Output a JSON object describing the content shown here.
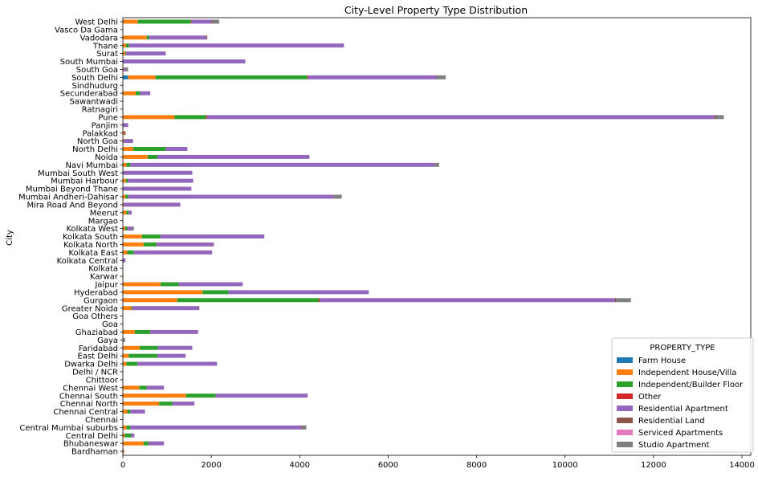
{
  "chart_data": {
    "type": "bar",
    "orientation": "horizontal",
    "stacked": true,
    "title": "City-Level Property Type Distribution",
    "xlabel": "",
    "ylabel": "City",
    "xlim": [
      0,
      14200
    ],
    "xticks": [
      0,
      2000,
      4000,
      6000,
      8000,
      10000,
      12000,
      14000
    ],
    "grid": false,
    "legend_title": "PROPERTY_TYPE",
    "legend_position": "lower-right",
    "categories": [
      "Bardhaman",
      "Bhubaneswar",
      "Central Delhi",
      "Central Mumbai suburbs",
      "Chennai",
      "Chennai Central",
      "Chennai North",
      "Chennai South",
      "Chennai West",
      "Chittoor",
      "Delhi / NCR",
      "Dwarka Delhi",
      "East Delhi",
      "Faridabad",
      "Gaya",
      "Ghaziabad",
      "Goa",
      "Goa Others",
      "Greater Noida",
      "Gurgaon",
      "Hyderabad",
      "Jaipur",
      "Karwar",
      "Kolkata",
      "Kolkata Central",
      "Kolkata East",
      "Kolkata North",
      "Kolkata South",
      "Kolkata West",
      "Margao",
      "Meerut",
      "Mira Road And Beyond",
      "Mumbai Andheri-Dahisar",
      "Mumbai Beyond Thane",
      "Mumbai Harbour",
      "Mumbai South West",
      "Navi Mumbai",
      "Noida",
      "North Delhi",
      "North Goa",
      "Palakkad",
      "Panjim",
      "Pune",
      "Ratnagiri",
      "Sawantwadi",
      "Secunderabad",
      "Sindhudurg",
      "South Delhi",
      "South Goa",
      "South Mumbai",
      "Surat",
      "Thane",
      "Vadodara",
      "Vasco Da Gama",
      "West Delhi"
    ],
    "series": [
      {
        "name": "Farm House",
        "color": "#1f77b4",
        "values": [
          0,
          0,
          0,
          0,
          0,
          0,
          0,
          0,
          0,
          0,
          0,
          0,
          0,
          0,
          0,
          0,
          0,
          0,
          0,
          0,
          0,
          0,
          0,
          0,
          0,
          0,
          0,
          0,
          0,
          0,
          0,
          0,
          0,
          0,
          0,
          0,
          0,
          0,
          0,
          0,
          0,
          0,
          0,
          0,
          0,
          0,
          0,
          120,
          0,
          0,
          0,
          0,
          0,
          0,
          10
        ]
      },
      {
        "name": "Independent House/Villa",
        "color": "#ff7f0e",
        "values": [
          20,
          470,
          40,
          80,
          0,
          100,
          820,
          1430,
          370,
          0,
          0,
          80,
          130,
          380,
          10,
          270,
          0,
          0,
          190,
          1230,
          1800,
          850,
          10,
          0,
          0,
          100,
          470,
          430,
          50,
          0,
          80,
          20,
          60,
          0,
          70,
          0,
          80,
          560,
          230,
          20,
          30,
          10,
          1170,
          0,
          0,
          290,
          0,
          620,
          20,
          0,
          50,
          70,
          540,
          0,
          330
        ]
      },
      {
        "name": "Independent/Builder Floor",
        "color": "#2ca02c",
        "values": [
          0,
          110,
          150,
          90,
          0,
          70,
          300,
          670,
          170,
          0,
          0,
          250,
          650,
          410,
          0,
          350,
          0,
          0,
          20,
          3200,
          590,
          410,
          0,
          0,
          0,
          150,
          290,
          420,
          50,
          0,
          50,
          0,
          60,
          0,
          40,
          0,
          90,
          220,
          740,
          0,
          0,
          0,
          710,
          0,
          0,
          100,
          0,
          3430,
          0,
          0,
          20,
          70,
          50,
          0,
          1200
        ]
      },
      {
        "name": "Other",
        "color": "#d62728",
        "values": [
          0,
          0,
          0,
          0,
          0,
          0,
          0,
          0,
          0,
          0,
          0,
          0,
          0,
          0,
          0,
          0,
          0,
          0,
          0,
          20,
          0,
          0,
          0,
          0,
          0,
          0,
          0,
          0,
          0,
          0,
          0,
          0,
          0,
          0,
          0,
          0,
          0,
          0,
          0,
          0,
          0,
          0,
          20,
          0,
          0,
          0,
          0,
          20,
          0,
          0,
          0,
          0,
          0,
          0,
          10
        ]
      },
      {
        "name": "Residential Apartment",
        "color": "#9467bd",
        "values": [
          0,
          350,
          70,
          3870,
          0,
          330,
          500,
          2080,
          390,
          0,
          0,
          1800,
          640,
          780,
          0,
          1080,
          0,
          0,
          1500,
          6680,
          3170,
          1450,
          0,
          0,
          60,
          1770,
          1300,
          2350,
          100,
          0,
          70,
          1280,
          4650,
          1550,
          1480,
          1570,
          6880,
          3440,
          490,
          210,
          0,
          110,
          11480,
          0,
          0,
          230,
          0,
          2900,
          50,
          2770,
          900,
          4860,
          1300,
          0,
          450
        ]
      },
      {
        "name": "Residential Land",
        "color": "#8c564b",
        "values": [
          0,
          0,
          0,
          20,
          0,
          0,
          0,
          0,
          0,
          0,
          0,
          0,
          0,
          0,
          0,
          0,
          0,
          0,
          20,
          30,
          0,
          0,
          0,
          0,
          0,
          0,
          0,
          0,
          0,
          0,
          0,
          0,
          0,
          0,
          0,
          0,
          0,
          0,
          0,
          0,
          30,
          0,
          30,
          0,
          0,
          0,
          0,
          10,
          0,
          0,
          0,
          0,
          20,
          0,
          30
        ]
      },
      {
        "name": "Serviced Apartments",
        "color": "#e377c2",
        "values": [
          0,
          0,
          0,
          0,
          0,
          0,
          0,
          0,
          0,
          0,
          0,
          0,
          0,
          0,
          0,
          0,
          0,
          0,
          0,
          0,
          0,
          0,
          0,
          0,
          0,
          0,
          0,
          0,
          0,
          0,
          0,
          0,
          0,
          0,
          0,
          0,
          0,
          0,
          0,
          0,
          0,
          0,
          0,
          0,
          0,
          0,
          0,
          0,
          0,
          0,
          0,
          0,
          0,
          0,
          0
        ]
      },
      {
        "name": "Studio Apartment",
        "color": "#7f7f7f",
        "values": [
          10,
          0,
          0,
          90,
          0,
          0,
          0,
          0,
          0,
          0,
          0,
          0,
          0,
          0,
          40,
          0,
          0,
          0,
          0,
          330,
          0,
          0,
          0,
          0,
          0,
          0,
          0,
          0,
          50,
          0,
          0,
          0,
          180,
          0,
          0,
          0,
          100,
          0,
          0,
          0,
          0,
          0,
          180,
          0,
          0,
          0,
          0,
          200,
          50,
          0,
          0,
          0,
          0,
          0,
          150
        ]
      }
    ]
  }
}
